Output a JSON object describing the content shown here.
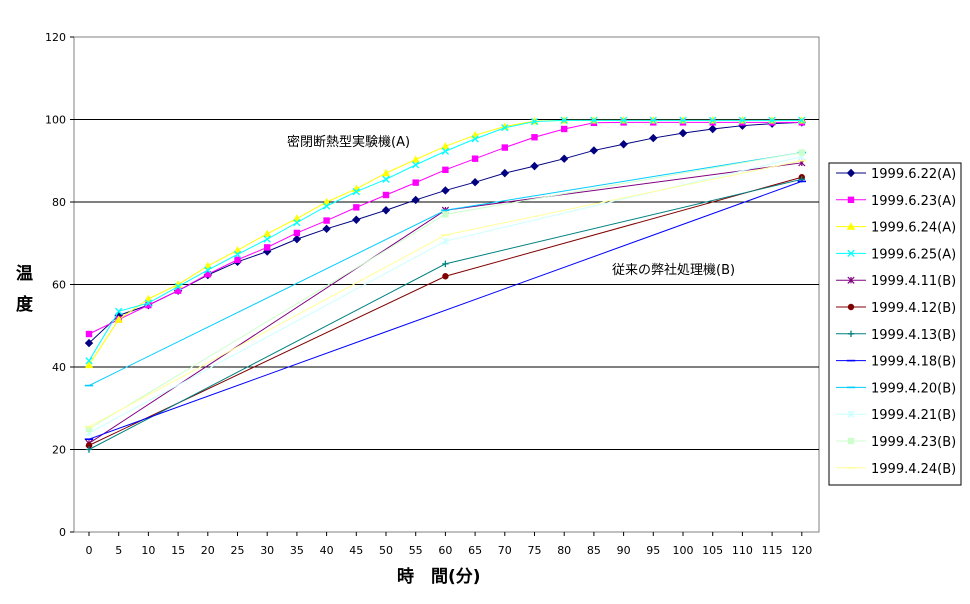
{
  "chart_data": {
    "type": "line",
    "xlabel": "時　間(分)",
    "ylabel": "温度",
    "ylim": [
      0,
      120
    ],
    "yticks": [
      0,
      20,
      40,
      60,
      80,
      100,
      120
    ],
    "xticks": [
      0,
      5,
      10,
      15,
      20,
      25,
      30,
      35,
      40,
      45,
      50,
      55,
      60,
      65,
      70,
      75,
      80,
      85,
      90,
      95,
      100,
      105,
      110,
      115,
      120
    ],
    "grid": "horizontal",
    "legend_position": "right",
    "annotations": [
      {
        "text": "密閉断熱型実験機(A)"
      },
      {
        "text": "従来の弊社処理機(B)"
      }
    ],
    "series": [
      {
        "name": "1999.6.22(A)",
        "color": "#000080",
        "marker": "diamond",
        "x": [
          0,
          5,
          10,
          15,
          20,
          25,
          30,
          35,
          40,
          45,
          50,
          55,
          60,
          65,
          70,
          75,
          80,
          85,
          90,
          95,
          100,
          105,
          110,
          115,
          120
        ],
        "y": [
          45.8,
          52.5,
          55,
          58.5,
          62.3,
          65.5,
          68,
          71,
          73.5,
          75.7,
          78,
          80.5,
          82.8,
          84.8,
          87,
          88.7,
          90.5,
          92.5,
          94,
          95.5,
          96.7,
          97.7,
          98.5,
          99,
          99.3
        ]
      },
      {
        "name": "1999.6.23(A)",
        "color": "#FF00FF",
        "marker": "square",
        "x": [
          0,
          5,
          10,
          15,
          20,
          25,
          30,
          35,
          40,
          45,
          50,
          55,
          60,
          65,
          70,
          75,
          80,
          85,
          90,
          95,
          100,
          105,
          110,
          115,
          120
        ],
        "y": [
          48,
          51.5,
          55,
          58.5,
          62.5,
          66,
          69,
          72.5,
          75.5,
          78.7,
          81.7,
          84.7,
          87.8,
          90.5,
          93.2,
          95.7,
          97.7,
          99.2,
          99.3,
          99.3,
          99.3,
          99.3,
          99.3,
          99.3,
          99.3
        ]
      },
      {
        "name": "1999.6.24(A)",
        "color": "#FFFF00",
        "marker": "triangle",
        "x": [
          0,
          5,
          10,
          15,
          20,
          25,
          30,
          35,
          40,
          45,
          50,
          55,
          60,
          65,
          70,
          75,
          80,
          85,
          90,
          95,
          100,
          105,
          110,
          115,
          120
        ],
        "y": [
          40.5,
          51.5,
          56.5,
          60,
          64.5,
          68.3,
          72.3,
          76,
          80,
          83.2,
          87,
          90.3,
          93.5,
          96.2,
          98.3,
          99.6,
          99.8,
          99.8,
          99.8,
          99.8,
          99.8,
          99.8,
          99.8,
          99.8,
          99.8
        ]
      },
      {
        "name": "1999.6.25(A)",
        "color": "#00FFFF",
        "marker": "x",
        "x": [
          0,
          5,
          10,
          15,
          20,
          25,
          30,
          35,
          40,
          45,
          50,
          55,
          60,
          65,
          70,
          75,
          80,
          85,
          90,
          95,
          100,
          105,
          110,
          115,
          120
        ],
        "y": [
          41.5,
          53.5,
          55.5,
          59.5,
          63.5,
          67.3,
          71,
          75,
          79,
          82.5,
          85.5,
          89,
          92.3,
          95.3,
          98,
          99.5,
          99.8,
          99.8,
          99.8,
          99.8,
          99.8,
          99.8,
          99.8,
          99.8,
          99.8
        ]
      },
      {
        "name": "1999.4.11(B)",
        "color": "#800080",
        "marker": "star",
        "x": [
          0,
          60,
          120
        ],
        "y": [
          21.5,
          78,
          89.5
        ]
      },
      {
        "name": "1999.4.12(B)",
        "color": "#800000",
        "marker": "circle",
        "x": [
          0,
          60,
          120
        ],
        "y": [
          21,
          62,
          86
        ]
      },
      {
        "name": "1999.4.13(B)",
        "color": "#008080",
        "marker": "plus",
        "x": [
          0,
          60,
          120
        ],
        "y": [
          20,
          65,
          85.5
        ]
      },
      {
        "name": "1999.4.18(B)",
        "color": "#0000FF",
        "marker": "dash",
        "x": [
          0,
          120
        ],
        "y": [
          22.5,
          85
        ]
      },
      {
        "name": "1999.4.20(B)",
        "color": "#00CCFF",
        "marker": "dash",
        "x": [
          0,
          60,
          120
        ],
        "y": [
          35.5,
          78,
          92
        ]
      },
      {
        "name": "1999.4.21(B)",
        "color": "#CCFFFF",
        "marker": "star",
        "x": [
          0,
          60,
          120
        ],
        "y": [
          24,
          70.5,
          91
        ]
      },
      {
        "name": "1999.4.23(B)",
        "color": "#CCFFCC",
        "marker": "square",
        "x": [
          0,
          60,
          120
        ],
        "y": [
          25,
          77,
          92
        ]
      },
      {
        "name": "1999.4.24(B)",
        "color": "#FFFF99",
        "marker": "dash",
        "x": [
          0,
          60,
          120
        ],
        "y": [
          25.5,
          72,
          90
        ]
      }
    ]
  }
}
